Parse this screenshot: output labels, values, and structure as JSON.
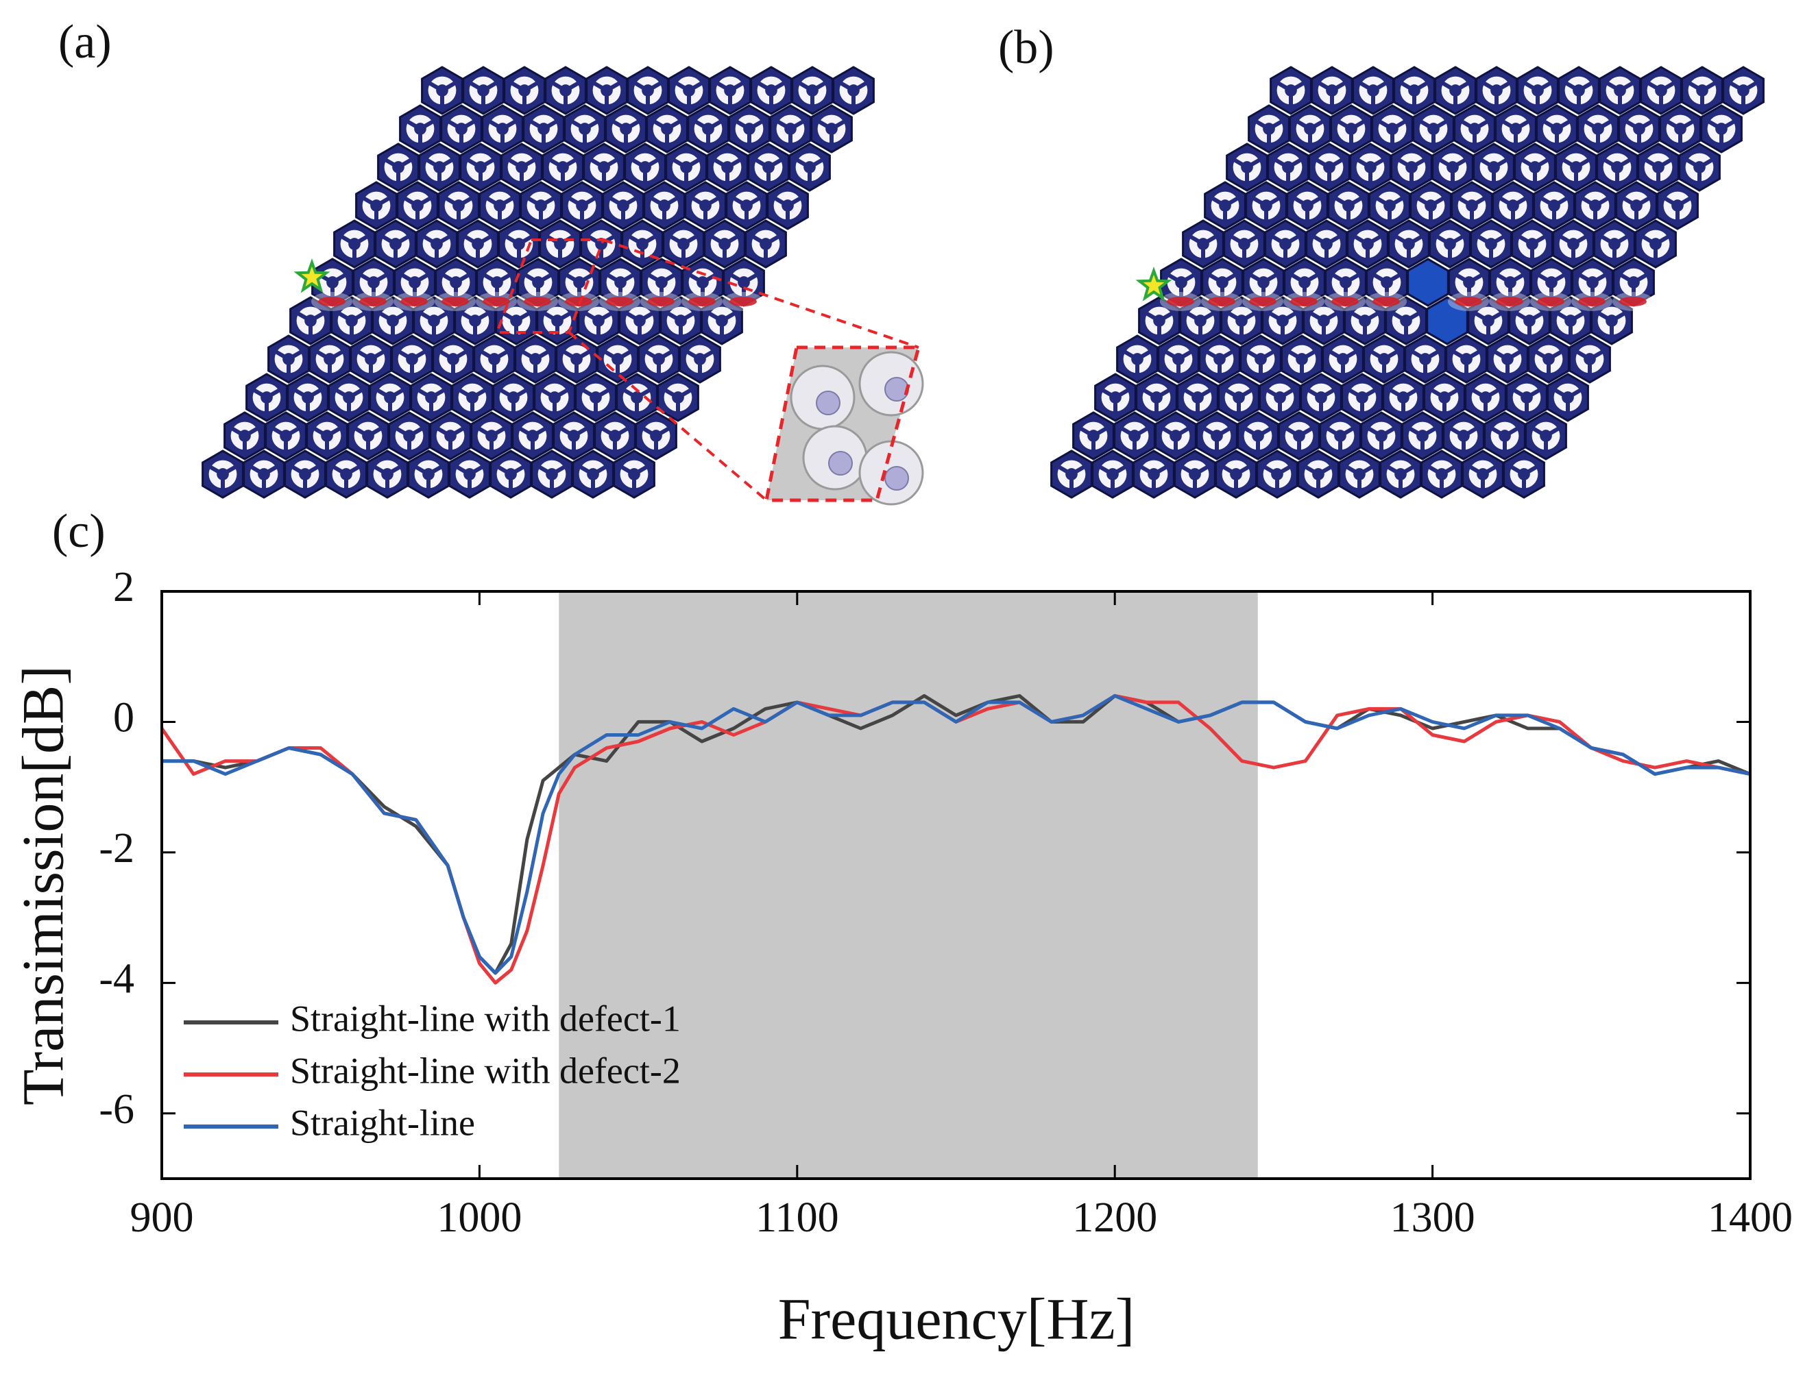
{
  "panel_labels": [
    "(a)",
    "(b)",
    "(c)"
  ],
  "chart_data": {
    "type": "line",
    "xlabel": "Frequency[Hz]",
    "ylabel": "Transimission[dB]",
    "x": [
      900,
      910,
      920,
      930,
      940,
      950,
      960,
      970,
      980,
      990,
      995,
      1000,
      1005,
      1010,
      1015,
      1020,
      1025,
      1030,
      1040,
      1050,
      1060,
      1070,
      1080,
      1090,
      1100,
      1110,
      1120,
      1130,
      1140,
      1150,
      1160,
      1170,
      1180,
      1190,
      1200,
      1210,
      1220,
      1230,
      1240,
      1250,
      1260,
      1270,
      1280,
      1290,
      1300,
      1310,
      1320,
      1330,
      1340,
      1350,
      1360,
      1370,
      1380,
      1390,
      1400
    ],
    "series": [
      {
        "name": "Straight-line with defect-1",
        "color": "#454545",
        "values": [
          -0.6,
          -0.6,
          -0.7,
          -0.6,
          -0.4,
          -0.5,
          -0.8,
          -1.3,
          -1.6,
          -2.2,
          -3.0,
          -3.6,
          -3.85,
          -3.4,
          -1.8,
          -0.9,
          -0.7,
          -0.5,
          -0.6,
          0.0,
          0.0,
          -0.3,
          -0.1,
          0.2,
          0.3,
          0.1,
          -0.1,
          0.1,
          0.4,
          0.1,
          0.3,
          0.4,
          0.0,
          0.0,
          0.4,
          0.3,
          0.0,
          0.1,
          0.3,
          0.3,
          0.0,
          -0.1,
          0.2,
          0.1,
          -0.1,
          0.0,
          0.1,
          -0.1,
          -0.1,
          -0.4,
          -0.5,
          -0.8,
          -0.7,
          -0.6,
          -0.8
        ]
      },
      {
        "name": "Straight-line with defect-2",
        "color": "#e8393e",
        "values": [
          -0.1,
          -0.8,
          -0.6,
          -0.6,
          -0.4,
          -0.4,
          -0.8,
          -1.4,
          -1.5,
          -2.2,
          -3.0,
          -3.7,
          -4.0,
          -3.8,
          -3.2,
          -2.2,
          -1.1,
          -0.7,
          -0.4,
          -0.3,
          -0.1,
          0.0,
          -0.2,
          0.0,
          0.3,
          0.2,
          0.1,
          0.3,
          0.3,
          0.0,
          0.2,
          0.3,
          0.0,
          0.1,
          0.4,
          0.3,
          0.3,
          -0.1,
          -0.6,
          -0.7,
          -0.6,
          0.1,
          0.2,
          0.2,
          -0.2,
          -0.3,
          0.0,
          0.1,
          0.0,
          -0.4,
          -0.6,
          -0.7,
          -0.6,
          -0.7,
          -0.8
        ]
      },
      {
        "name": "Straight-line",
        "color": "#2f66b5",
        "values": [
          -0.6,
          -0.6,
          -0.8,
          -0.6,
          -0.4,
          -0.5,
          -0.8,
          -1.4,
          -1.5,
          -2.2,
          -3.0,
          -3.6,
          -3.85,
          -3.6,
          -2.6,
          -1.4,
          -0.8,
          -0.5,
          -0.2,
          -0.2,
          0.0,
          -0.1,
          0.2,
          0.0,
          0.3,
          0.1,
          0.1,
          0.3,
          0.3,
          0.0,
          0.3,
          0.3,
          0.0,
          0.1,
          0.4,
          0.2,
          0.0,
          0.1,
          0.3,
          0.3,
          0.0,
          -0.1,
          0.1,
          0.2,
          0.0,
          -0.1,
          0.1,
          0.1,
          -0.1,
          -0.4,
          -0.5,
          -0.8,
          -0.7,
          -0.7,
          -0.8
        ]
      }
    ],
    "xlim": [
      900,
      1400
    ],
    "xticks": [
      900,
      1000,
      1100,
      1200,
      1300,
      1400
    ],
    "ylim": [
      -7,
      2
    ],
    "yticks": [
      2,
      0,
      -2,
      -4,
      -6
    ],
    "highlight": {
      "xrange": [
        1025,
        1245
      ],
      "color": "#c8c8c8"
    },
    "legend": "lower left"
  }
}
